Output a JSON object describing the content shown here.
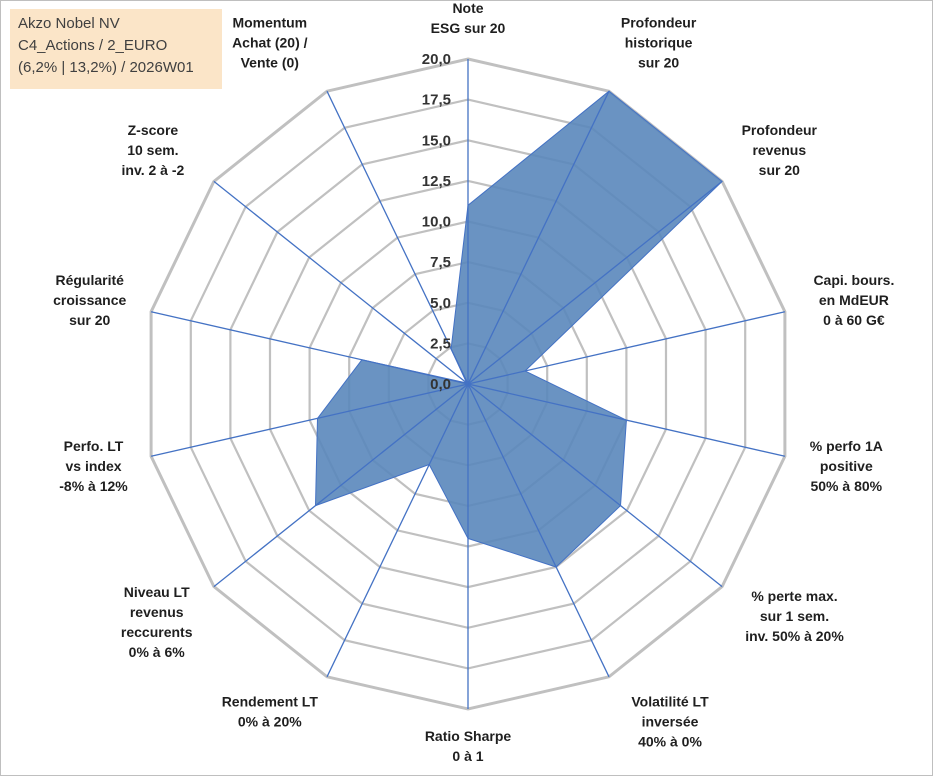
{
  "title": {
    "line1": "Akzo Nobel NV",
    "line2": "C4_Actions / 2_EURO",
    "line3": "(6,2% | 13,2%) / 2026W01"
  },
  "chart_data": {
    "type": "radar",
    "rmax": 20,
    "tick_labels": [
      "0,0",
      "2,5",
      "5,0",
      "7,5",
      "10,0",
      "12,5",
      "15,0",
      "17,5",
      "20,0"
    ],
    "axes": [
      {
        "label": [
          "Note",
          "ESG sur 20"
        ],
        "value": 11.0
      },
      {
        "label": [
          "Profondeur",
          "historique",
          "sur 20"
        ],
        "value": 20.0
      },
      {
        "label": [
          "Profondeur",
          "revenus",
          "sur 20"
        ],
        "value": 20.0
      },
      {
        "label": [
          "Capi. bours.",
          "en MdEUR",
          "0 à 60 G€"
        ],
        "value": 3.6
      },
      {
        "label": [
          "% perfo 1A",
          "positive",
          "50% à 80%"
        ],
        "value": 10.0
      },
      {
        "label": [
          "% perte max.",
          "sur 1 sem.",
          "inv. 50% à 20%"
        ],
        "value": 12.0
      },
      {
        "label": [
          "Volatilité LT",
          "inversée",
          "40% à 0%"
        ],
        "value": 12.5
      },
      {
        "label": [
          "Ratio Sharpe",
          "0 à 1"
        ],
        "value": 9.5
      },
      {
        "label": [
          "Rendement LT",
          "0% à 20%"
        ],
        "value": 5.5
      },
      {
        "label": [
          "Niveau LT",
          "revenus",
          "reccurents",
          "0% à 6%"
        ],
        "value": 12.0
      },
      {
        "label": [
          "Perfo. LT",
          "vs index",
          "-8% à 12%"
        ],
        "value": 9.5
      },
      {
        "label": [
          "Régularité",
          "croissance",
          "sur 20"
        ],
        "value": 6.7
      },
      {
        "label": [
          "Z-score",
          "10 sem.",
          "inv. 2 à -2"
        ],
        "value": 0.1
      },
      {
        "label": [
          "Momentum",
          "Achat (20) /",
          "Vente (0)"
        ],
        "value": 2.4
      }
    ],
    "colors": {
      "fill": "#5a87bb",
      "stroke": "#4472c4",
      "spoke": "#4472c4",
      "grid": "#c0c0c0"
    }
  }
}
